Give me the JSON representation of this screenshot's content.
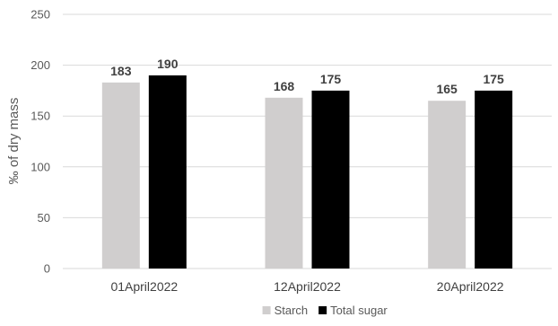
{
  "chart_data": {
    "type": "bar",
    "categories": [
      "01April2022",
      "12April2022",
      "20April2022"
    ],
    "series": [
      {
        "name": "Starch",
        "values": [
          183,
          168,
          165
        ],
        "color": "#d0cece"
      },
      {
        "name": "Total sugar",
        "values": [
          190,
          175,
          175
        ],
        "color": "#000000"
      }
    ],
    "title": "",
    "xlabel": "",
    "ylabel": "‰ of dry mass",
    "ylim": [
      0,
      250
    ],
    "yticks": [
      0,
      50,
      100,
      150,
      200,
      250
    ],
    "grid": true,
    "gridline_color": "#d9d9d9",
    "data_labels": true,
    "legend_position": "bottom"
  }
}
